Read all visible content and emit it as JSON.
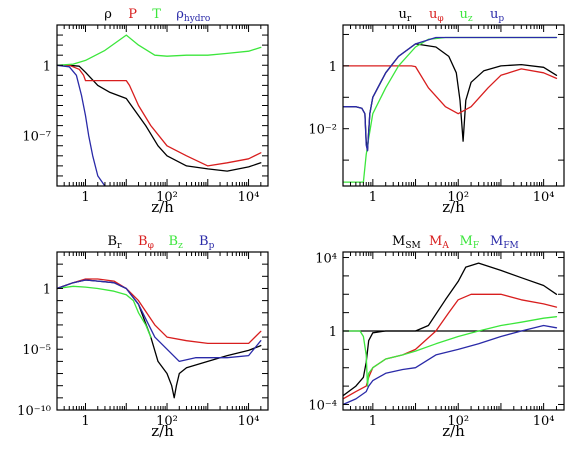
{
  "colors": {
    "black": "#000000",
    "red": "#d81e1e",
    "green": "#3ce63c",
    "blue": "#2a2aa8"
  },
  "chart_data": [
    {
      "type": "line",
      "xlabel": "z/h",
      "xscale": "log",
      "yscale": "log",
      "xlim": [
        0.2,
        30000
      ],
      "ylim": [
        1e-12,
        10000.0
      ],
      "xticklabels": [
        {
          "v": 1,
          "text": "1"
        },
        {
          "v": 100,
          "text": "10²"
        },
        {
          "v": 10000,
          "text": "10⁴"
        }
      ],
      "yticklabels": [
        {
          "v": 1,
          "text": "1"
        },
        {
          "v": 1e-07,
          "text": "10⁻⁷"
        }
      ],
      "legend": {
        "placement": "top",
        "labels": [
          "ρ",
          "P",
          "T",
          "ρhydro"
        ]
      },
      "series": [
        {
          "name": "ρ",
          "color": "black",
          "x": [
            0.2,
            0.4,
            0.7,
            1,
            2,
            4,
            10,
            30,
            60,
            100,
            300,
            1000,
            3000,
            10000,
            20000
          ],
          "y": [
            1,
            1,
            0.8,
            0.2,
            0.01,
            0.002,
            0.0005,
            1e-06,
            1e-08,
            1e-09,
            1e-10,
            5e-11,
            3e-11,
            8e-11,
            2e-10
          ]
        },
        {
          "name": "P",
          "color": "red",
          "x": [
            0.2,
            0.4,
            0.7,
            0.9,
            1,
            10,
            12,
            20,
            40,
            100,
            300,
            1000,
            3000,
            10000,
            20000
          ],
          "y": [
            1,
            1,
            0.4,
            0.1,
            0.03,
            0.03,
            0.01,
            0.0001,
            1e-06,
            1e-08,
            1e-09,
            1e-10,
            2e-10,
            5e-10,
            2e-09
          ]
        },
        {
          "name": "T",
          "color": "green",
          "x": [
            0.2,
            0.5,
            1,
            3,
            10,
            20,
            50,
            100,
            300,
            1000,
            3000,
            10000,
            20000
          ],
          "y": [
            1,
            1.3,
            3,
            30,
            1000,
            100,
            10,
            8,
            10,
            10,
            15,
            25,
            60
          ]
        },
        {
          "name": "ρhydro",
          "color": "blue",
          "x": [
            0.2,
            0.4,
            0.6,
            0.8,
            1,
            1.2,
            1.5,
            2,
            3
          ],
          "y": [
            1,
            0.7,
            0.1,
            0.001,
            1e-05,
            1e-07,
            1e-09,
            1e-11,
            1e-12
          ]
        }
      ]
    },
    {
      "type": "line",
      "xlabel": "z/h",
      "xscale": "log",
      "yscale": "log",
      "xlim": [
        0.2,
        30000
      ],
      "ylim": [
        0.00015,
        20
      ],
      "xticklabels": [
        {
          "v": 1,
          "text": "1"
        },
        {
          "v": 100,
          "text": "10²"
        },
        {
          "v": 10000,
          "text": "10⁴"
        }
      ],
      "yticklabels": [
        {
          "v": 1,
          "text": "1"
        },
        {
          "v": 0.01,
          "text": "10⁻²"
        }
      ],
      "legend": {
        "placement": "top",
        "labels": [
          "ur",
          "uφ",
          "uz",
          "up"
        ]
      },
      "series": [
        {
          "name": "ur",
          "color": "black",
          "x": [
            0.2,
            0.4,
            0.55,
            0.65,
            0.7,
            0.75,
            0.85,
            1,
            2,
            4,
            10,
            30,
            60,
            90,
            110,
            130,
            150,
            200,
            400,
            1000,
            3000,
            10000,
            20000
          ],
          "y": [
            0.05,
            0.05,
            0.045,
            0.03,
            0.004,
            0.002,
            0.03,
            0.1,
            0.6,
            2,
            5,
            4,
            2,
            0.6,
            0.08,
            0.004,
            0.08,
            0.3,
            0.7,
            1,
            1.1,
            0.9,
            0.5
          ]
        },
        {
          "name": "uφ",
          "color": "red",
          "x": [
            0.2,
            1,
            3,
            8,
            10,
            20,
            50,
            100,
            200,
            500,
            1000,
            3000,
            10000,
            20000
          ],
          "y": [
            1,
            1,
            1,
            1,
            0.95,
            0.2,
            0.05,
            0.03,
            0.05,
            0.2,
            0.5,
            0.8,
            0.6,
            0.4
          ]
        },
        {
          "name": "uz",
          "color": "green",
          "x": [
            0.2,
            0.3,
            0.5,
            0.6,
            0.7,
            0.8,
            1,
            2,
            4,
            10,
            20,
            50,
            100,
            1000,
            20000
          ],
          "y": [
            0.0002,
            0.0002,
            0.0002,
            0.0002,
            0.0015,
            0.005,
            0.03,
            0.2,
            1,
            4,
            7,
            8,
            8,
            8,
            8
          ]
        },
        {
          "name": "up",
          "color": "blue",
          "x": [
            0.2,
            0.4,
            0.55,
            0.65,
            0.7,
            0.75,
            0.85,
            1,
            2,
            4,
            10,
            30,
            60,
            100,
            1000,
            20000
          ],
          "y": [
            0.05,
            0.05,
            0.045,
            0.03,
            0.003,
            0.002,
            0.03,
            0.1,
            0.6,
            2,
            5,
            8,
            8,
            8,
            8,
            8
          ]
        }
      ]
    },
    {
      "type": "line",
      "xlabel": "z/h",
      "xscale": "log",
      "yscale": "log",
      "xlim": [
        0.2,
        30000
      ],
      "ylim": [
        1e-10,
        1000
      ],
      "xticklabels": [
        {
          "v": 1,
          "text": "1"
        },
        {
          "v": 100,
          "text": "10²"
        },
        {
          "v": 10000,
          "text": "10⁴"
        }
      ],
      "yticklabels": [
        {
          "v": 1,
          "text": "1"
        },
        {
          "v": 1e-05,
          "text": "10⁻⁵"
        },
        {
          "v": 1e-10,
          "text": "10⁻¹⁰"
        }
      ],
      "legend": {
        "placement": "top",
        "labels": [
          "Br",
          "Bφ",
          "Bz",
          "Bp"
        ]
      },
      "series": [
        {
          "name": "Br",
          "color": "black",
          "x": [
            0.2,
            0.5,
            1,
            2,
            5,
            10,
            20,
            40,
            60,
            100,
            130,
            150,
            170,
            200,
            300,
            1000,
            3000,
            10000,
            20000
          ],
          "y": [
            1,
            3,
            5,
            4,
            3,
            1,
            0.05,
            0.0001,
            1e-06,
            1e-07,
            1e-08,
            1e-09,
            1e-08,
            1e-07,
            3e-07,
            1e-06,
            3e-06,
            8e-06,
            2e-05
          ]
        },
        {
          "name": "Bφ",
          "color": "red",
          "x": [
            0.2,
            0.5,
            1,
            2,
            5,
            10,
            20,
            50,
            100,
            300,
            1000,
            3000,
            10000,
            20000
          ],
          "y": [
            1,
            3,
            6,
            6,
            4,
            1,
            0.1,
            0.001,
            0.0001,
            5e-05,
            3e-05,
            3e-05,
            3e-05,
            0.0003
          ]
        },
        {
          "name": "Bz",
          "color": "green",
          "x": [
            0.2,
            0.5,
            1,
            2,
            5,
            10,
            15,
            20,
            30,
            40
          ],
          "y": [
            1,
            1.5,
            1.3,
            1,
            0.6,
            0.3,
            0.1,
            0.01,
            0.001,
            0.0001
          ]
        },
        {
          "name": "Bp",
          "color": "blue",
          "x": [
            0.2,
            0.5,
            1,
            2,
            5,
            10,
            20,
            50,
            100,
            200,
            500,
            1000,
            3000,
            10000,
            20000
          ],
          "y": [
            1,
            3,
            5,
            4,
            3,
            1,
            0.05,
            0.0001,
            1e-05,
            1e-06,
            2e-06,
            2e-06,
            2e-06,
            3e-06,
            5e-05
          ]
        }
      ]
    },
    {
      "type": "line",
      "xlabel": "z/h",
      "xscale": "log",
      "yscale": "log",
      "xlim": [
        0.2,
        30000
      ],
      "ylim": [
        5e-05,
        20000
      ],
      "xticklabels": [
        {
          "v": 1,
          "text": "1"
        },
        {
          "v": 100,
          "text": "10²"
        },
        {
          "v": 10000,
          "text": "10⁴"
        }
      ],
      "yticklabels": [
        {
          "v": 10000,
          "text": "10⁴"
        },
        {
          "v": 1,
          "text": "1"
        },
        {
          "v": 0.0001,
          "text": "10⁻⁴"
        }
      ],
      "legend": {
        "placement": "top",
        "labels": [
          "MSM",
          "MA",
          "MF",
          "MFM"
        ]
      },
      "reference_line": 1,
      "series": [
        {
          "name": "MSM",
          "color": "black",
          "x": [
            0.2,
            0.4,
            0.6,
            0.7,
            0.8,
            1,
            2,
            5,
            10,
            20,
            50,
            100,
            150,
            300,
            1000,
            3000,
            10000,
            20000
          ],
          "y": [
            0.0003,
            0.001,
            0.003,
            0.02,
            0.3,
            0.8,
            1,
            1,
            1,
            2,
            50,
            500,
            3000,
            5000,
            2000,
            800,
            300,
            100
          ]
        },
        {
          "name": "MA",
          "color": "red",
          "x": [
            0.2,
            0.4,
            0.7,
            0.8,
            1,
            2,
            5,
            10,
            30,
            60,
            100,
            200,
            500,
            1000,
            3000,
            10000,
            20000
          ],
          "y": [
            0.0002,
            0.0005,
            0.001,
            0.003,
            0.01,
            0.03,
            0.05,
            0.1,
            1,
            10,
            50,
            100,
            100,
            100,
            50,
            30,
            20
          ]
        },
        {
          "name": "MF",
          "color": "green",
          "x": [
            0.2,
            0.35,
            0.5,
            0.6,
            0.7,
            0.75,
            0.8,
            1,
            2,
            5,
            10,
            30,
            100,
            300,
            1000,
            3000,
            10000,
            20000
          ],
          "y": [
            1,
            1,
            1,
            0.5,
            0.05,
            0.001,
            0.005,
            0.01,
            0.03,
            0.05,
            0.08,
            0.2,
            0.5,
            1,
            2,
            3,
            5,
            6
          ]
        },
        {
          "name": "MFM",
          "color": "blue",
          "x": [
            0.2,
            0.4,
            0.7,
            0.8,
            1,
            2,
            5,
            10,
            30,
            100,
            300,
            1000,
            3000,
            10000,
            20000
          ],
          "y": [
            0.0001,
            0.0002,
            0.0005,
            0.001,
            0.002,
            0.005,
            0.008,
            0.01,
            0.05,
            0.1,
            0.2,
            0.5,
            1,
            2,
            1.5
          ]
        }
      ]
    }
  ]
}
